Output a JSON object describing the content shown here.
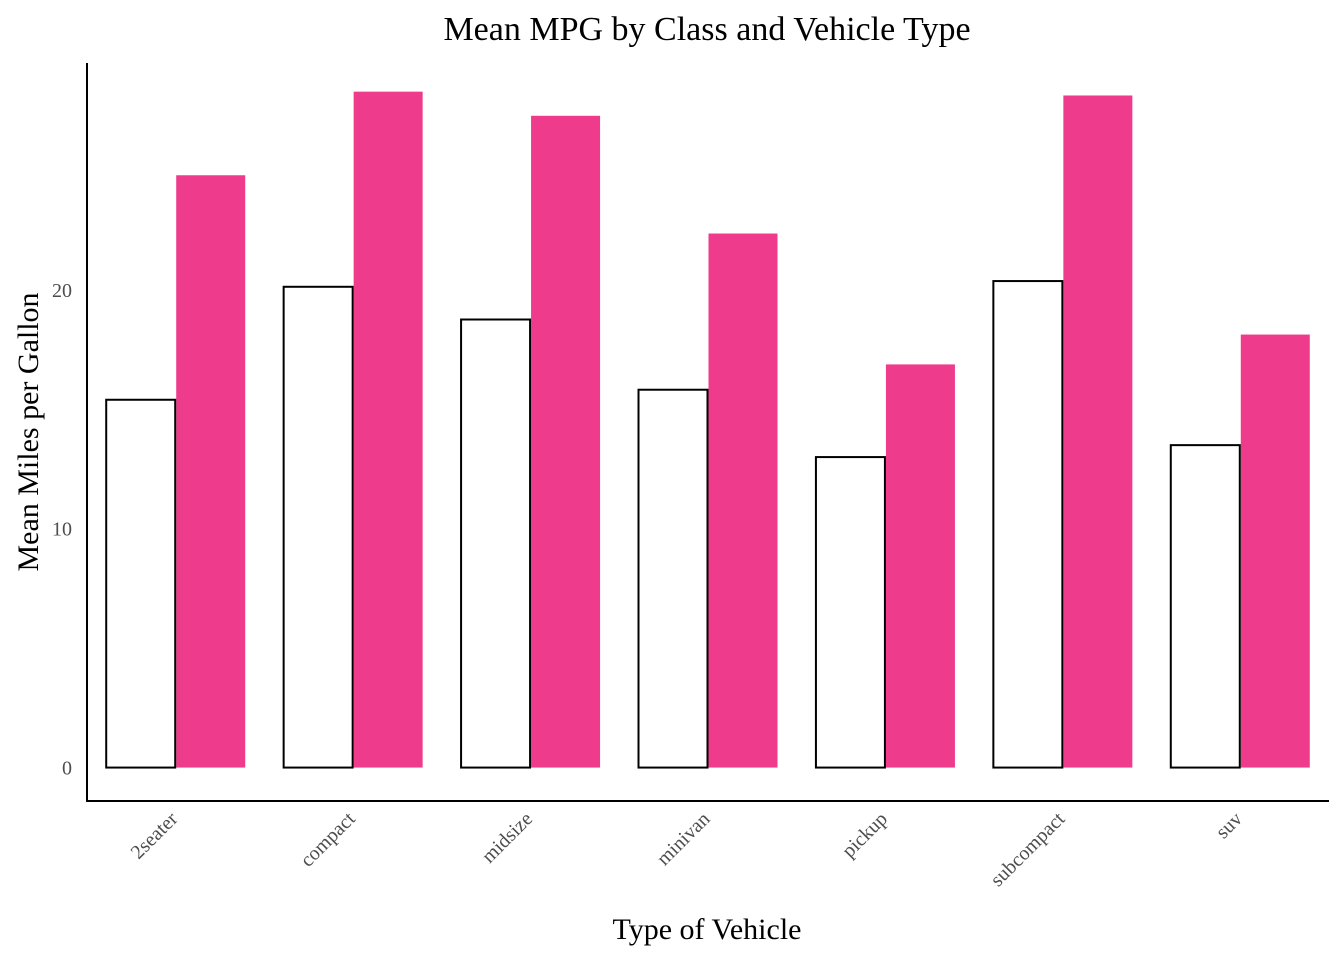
{
  "chart_data": {
    "type": "bar",
    "title": "Mean MPG by Class and Vehicle Type",
    "xlabel": "Type of Vehicle",
    "ylabel": "Mean Miles per Gallon",
    "categories": [
      "2seater",
      "compact",
      "midsize",
      "minivan",
      "pickup",
      "subcompact",
      "suv"
    ],
    "series": [
      {
        "values": [
          15.4,
          20.13,
          18.76,
          15.82,
          13.0,
          20.37,
          13.5
        ]
      },
      {
        "values": [
          24.8,
          28.3,
          27.29,
          22.36,
          16.88,
          28.14,
          18.13
        ]
      }
    ],
    "yticks": [
      0,
      10,
      20
    ],
    "ylim": [
      -1.4,
      29.5
    ],
    "grid": false,
    "colors": {
      "series1_fill": "#ffffff",
      "series1_stroke": "#000000",
      "series2_fill": "#ee3b8b",
      "axis": "#000000"
    }
  }
}
